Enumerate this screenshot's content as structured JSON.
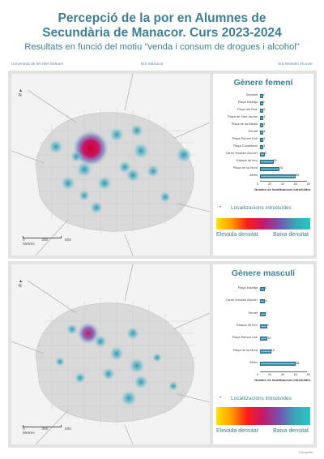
{
  "header": {
    "title_line1": "Percepció de la por en Alumnes de",
    "title_line2": "Secundària de Manacor. Curs 2023-2024",
    "subtitle": "Resultats en funció del motiu \"venda i consum de drogues i alcohol\""
  },
  "credits": {
    "left": "Universitat de les Illes Balears",
    "center": "IES Manacor",
    "right": "IES Mossèn Alcover"
  },
  "map_common": {
    "north_label": "N",
    "scale_ticks": [
      "0",
      "250",
      "500"
    ],
    "scale_unit": "Metres",
    "locations_label": "Localitzacions introduïdes",
    "gradient_high": "Elevada densitat",
    "gradient_low": "Baixa densitat",
    "axis_title": "Nombre de localitzacions introduïdes",
    "axis_ticks": [
      "0",
      "20",
      "40",
      "60",
      "80"
    ],
    "gradient_colors": [
      "#ffe600",
      "#ff9900",
      "#ff1a1a",
      "#c21a6c",
      "#7a4fb0",
      "#3aa5b8",
      "#29c4c4"
    ]
  },
  "chart_data": [
    {
      "type": "bar",
      "title": "Gènere femení",
      "xlabel": "Nombre de localitzacions introduïdes",
      "xlim": [
        0,
        80
      ],
      "categories": [
        "Sementi",
        "Plaça Indolitja",
        "Plaça del Parc",
        "Plaça de Sant Jaume",
        "Plaça de sa Bassa",
        "Serralt",
        "Plaça Ramon Llull",
        "Plaça Constitució",
        "Carrer Mossèn Alcover",
        "Estació de tren",
        "Plaça de sa Mora",
        "Altres"
      ],
      "values": [
        2,
        2,
        3,
        3,
        3,
        3,
        3,
        3,
        5,
        20,
        31,
        58
      ]
    },
    {
      "type": "bar",
      "title": "Gènere masculí",
      "xlabel": "Nombre de localitzacions introduïdes",
      "xlim": [
        0,
        80
      ],
      "categories": [
        "Plaça Indolitja",
        "Carrer Mossèn Alcover",
        "Serralt",
        "Estació de tren",
        "Plaça Ramon Llull",
        "Plaça de sa Mora",
        "Altres"
      ],
      "values": [
        5,
        6,
        7,
        9,
        10,
        16,
        58
      ]
    }
  ],
  "footer": {
    "text": "Cartografia"
  }
}
